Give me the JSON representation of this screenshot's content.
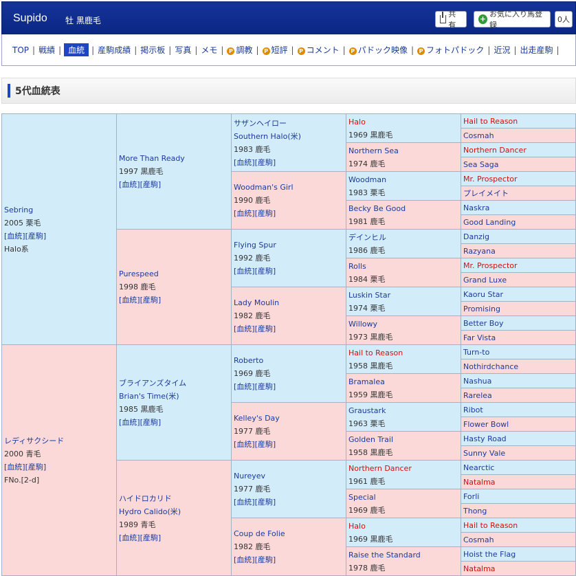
{
  "header": {
    "horse_name": "Supido",
    "horse_info": "牡 黒鹿毛",
    "share_label": "共有",
    "fav_label": "お気に入り馬登録",
    "fav_count": "0人"
  },
  "nav": [
    {
      "label": "TOP",
      "active": false,
      "p": false
    },
    {
      "label": "戦績",
      "active": false,
      "p": false
    },
    {
      "label": "血統",
      "active": true,
      "p": false
    },
    {
      "label": "産駒成績",
      "active": false,
      "p": false
    },
    {
      "label": "掲示板",
      "active": false,
      "p": false
    },
    {
      "label": "写真",
      "active": false,
      "p": false
    },
    {
      "label": "メモ",
      "active": false,
      "p": false
    },
    {
      "label": "調教",
      "active": false,
      "p": true
    },
    {
      "label": "短評",
      "active": false,
      "p": true
    },
    {
      "label": "コメント",
      "active": false,
      "p": true
    },
    {
      "label": "パドック映像",
      "active": false,
      "p": true
    },
    {
      "label": "フォトパドック",
      "active": false,
      "p": true
    },
    {
      "label": "近況",
      "active": false,
      "p": false
    },
    {
      "label": "出走産駒",
      "active": false,
      "p": false
    }
  ],
  "section_title": "5代血統表",
  "links": {
    "bloodline": "[血統]",
    "offspring": "[産駒]"
  },
  "pedigree": {
    "gen1": [
      {
        "name": "Sebring",
        "year": "2005",
        "color": "栗毛",
        "extra": "Halo系"
      },
      {
        "name": "レディサクシード",
        "year": "2000",
        "color": "青毛",
        "extra": "FNo.[2-d]"
      }
    ],
    "gen2": [
      {
        "name": "More Than Ready",
        "year": "1997",
        "color": "黒鹿毛"
      },
      {
        "name": "Purespeed",
        "year": "1998",
        "color": "鹿毛"
      },
      {
        "name": "ブライアンズタイム",
        "sub": "Brian's Time(米)",
        "year": "1985",
        "color": "黒鹿毛"
      },
      {
        "name": "ハイドロカリド",
        "sub": "Hydro Calido(米)",
        "year": "1989",
        "color": "青毛"
      }
    ],
    "gen3": [
      {
        "name": "サザンヘイロー",
        "sub": "Southern Halo(米)",
        "year": "1983",
        "color": "鹿毛"
      },
      {
        "name": "Woodman's Girl",
        "year": "1990",
        "color": "鹿毛"
      },
      {
        "name": "Flying Spur",
        "year": "1992",
        "color": "鹿毛"
      },
      {
        "name": "Lady Moulin",
        "year": "1982",
        "color": "鹿毛"
      },
      {
        "name": "Roberto",
        "year": "1969",
        "color": "鹿毛"
      },
      {
        "name": "Kelley's Day",
        "year": "1977",
        "color": "鹿毛"
      },
      {
        "name": "Nureyev",
        "year": "1977",
        "color": "鹿毛"
      },
      {
        "name": "Coup de Folie",
        "year": "1982",
        "color": "鹿毛"
      }
    ],
    "gen4": [
      {
        "name": "Halo",
        "year": "1969",
        "color": "黒鹿毛",
        "red": true
      },
      {
        "name": "Northern Sea",
        "year": "1974",
        "color": "鹿毛",
        "red": false
      },
      {
        "name": "Woodman",
        "year": "1983",
        "color": "栗毛",
        "red": false
      },
      {
        "name": "Becky Be Good",
        "year": "1981",
        "color": "鹿毛",
        "red": false
      },
      {
        "name": "デインヒル",
        "year": "1986",
        "color": "鹿毛",
        "red": false
      },
      {
        "name": "Rolls",
        "year": "1984",
        "color": "栗毛",
        "red": false
      },
      {
        "name": "Luskin Star",
        "year": "1974",
        "color": "栗毛",
        "red": false
      },
      {
        "name": "Willowy",
        "year": "1973",
        "color": "黒鹿毛",
        "red": false
      },
      {
        "name": "Hail to Reason",
        "year": "1958",
        "color": "黒鹿毛",
        "red": true
      },
      {
        "name": "Bramalea",
        "year": "1959",
        "color": "黒鹿毛",
        "red": false
      },
      {
        "name": "Graustark",
        "year": "1963",
        "color": "栗毛",
        "red": false
      },
      {
        "name": "Golden Trail",
        "year": "1958",
        "color": "黒鹿毛",
        "red": false
      },
      {
        "name": "Northern Dancer",
        "year": "1961",
        "color": "鹿毛",
        "red": true
      },
      {
        "name": "Special",
        "year": "1969",
        "color": "鹿毛",
        "red": false
      },
      {
        "name": "Halo",
        "year": "1969",
        "color": "黒鹿毛",
        "red": true
      },
      {
        "name": "Raise the Standard",
        "year": "1978",
        "color": "鹿毛",
        "red": false
      }
    ],
    "gen5": [
      {
        "name": "Hail to Reason",
        "red": true
      },
      {
        "name": "Cosmah",
        "red": false
      },
      {
        "name": "Northern Dancer",
        "red": true
      },
      {
        "name": "Sea Saga",
        "red": false
      },
      {
        "name": "Mr. Prospector",
        "red": true
      },
      {
        "name": "プレイメイト",
        "red": false
      },
      {
        "name": "Naskra",
        "red": false
      },
      {
        "name": "Good Landing",
        "red": false
      },
      {
        "name": "Danzig",
        "red": false
      },
      {
        "name": "Razyana",
        "red": false
      },
      {
        "name": "Mr. Prospector",
        "red": true
      },
      {
        "name": "Grand Luxe",
        "red": false
      },
      {
        "name": "Kaoru Star",
        "red": false
      },
      {
        "name": "Promising",
        "red": false
      },
      {
        "name": "Better Boy",
        "red": false
      },
      {
        "name": "Far Vista",
        "red": false
      },
      {
        "name": "Turn-to",
        "red": false
      },
      {
        "name": "Nothirdchance",
        "red": false
      },
      {
        "name": "Nashua",
        "red": false
      },
      {
        "name": "Rarelea",
        "red": false
      },
      {
        "name": "Ribot",
        "red": false
      },
      {
        "name": "Flower Bowl",
        "red": false
      },
      {
        "name": "Hasty Road",
        "red": false
      },
      {
        "name": "Sunny Vale",
        "red": false
      },
      {
        "name": "Nearctic",
        "red": false
      },
      {
        "name": "Natalma",
        "red": true
      },
      {
        "name": "Forli",
        "red": false
      },
      {
        "name": "Thong",
        "red": false
      },
      {
        "name": "Hail to Reason",
        "red": true
      },
      {
        "name": "Cosmah",
        "red": false
      },
      {
        "name": "Hoist the Flag",
        "red": false
      },
      {
        "name": "Natalma",
        "red": true
      }
    ]
  }
}
